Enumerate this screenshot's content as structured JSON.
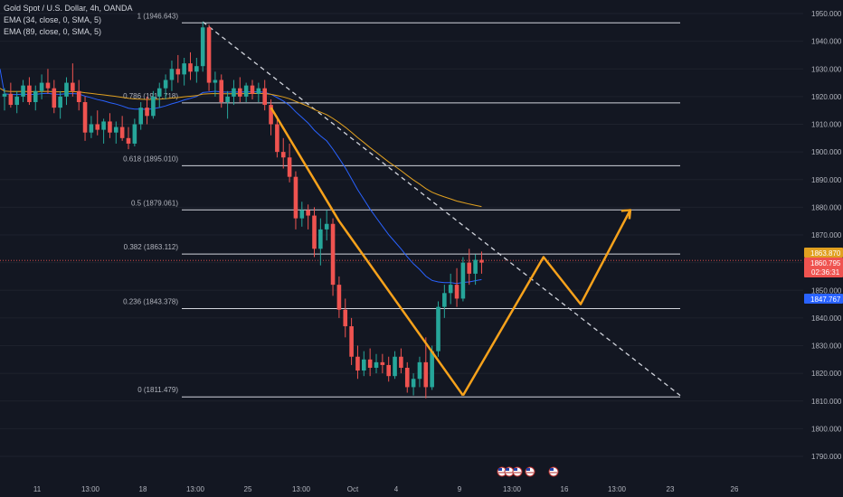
{
  "header": {
    "symbol_line": "Gold Spot / U.S. Dollar, 4h, OANDA",
    "indicators": [
      "EMA (34, close, 0, SMA, 5)",
      "EMA (89, close, 0, SMA, 5)"
    ]
  },
  "colors": {
    "background": "#131722",
    "up": "#26a69a",
    "down": "#ef5350",
    "ema34": "#2962ff",
    "ema89": "#e0a020",
    "drawing": "#f7a21b",
    "fib": "#d1d4dc",
    "trendline": "#d1d4dc",
    "text": "#b2b5be"
  },
  "chart_data": {
    "type": "candlestick",
    "title": "Gold Spot / U.S. Dollar, 4h, OANDA",
    "ylim": [
      1785,
      1955
    ],
    "y_ticks": [
      1790,
      1800,
      1810,
      1820,
      1830,
      1840,
      1850,
      1860,
      1870,
      1880,
      1890,
      1900,
      1910,
      1920,
      1930,
      1940,
      1950
    ],
    "y_tick_labels": [
      "1790.000",
      "1800.000",
      "1810.000",
      "1820.000",
      "1830.000",
      "1840.000",
      "1850.000",
      "1860.000",
      "1870.000",
      "1880.000",
      "1890.000",
      "1900.000",
      "1910.000",
      "1920.000",
      "1930.000",
      "1940.000",
      "1950.000"
    ],
    "x_ticks": [
      "11",
      "13:00",
      "18",
      "13:00",
      "25",
      "13:00",
      "Oct",
      "4",
      "9",
      "13:00",
      "16",
      "13:00",
      "23",
      "26"
    ],
    "fib_levels": [
      {
        "label": "1 (1946.643)",
        "value": 1946.643
      },
      {
        "label": "0.786 (1917.718)",
        "value": 1917.718
      },
      {
        "label": "0.618 (1895.010)",
        "value": 1895.01
      },
      {
        "label": "0.5 (1879.061)",
        "value": 1879.061
      },
      {
        "label": "0.382 (1863.112)",
        "value": 1863.112
      },
      {
        "label": "0.236 (1843.378)",
        "value": 1843.378
      },
      {
        "label": "0 (1811.479)",
        "value": 1811.479
      }
    ],
    "price_tags": [
      {
        "label": "1863.870",
        "value": 1863.87,
        "color": "#e0a020"
      },
      {
        "label": "1860.795",
        "value": 1860.795,
        "color": "#ef5350",
        "sub": "02:36:31"
      },
      {
        "label": "1847.767",
        "value": 1847.767,
        "color": "#2962ff"
      }
    ],
    "candles": [
      {
        "o": 1920,
        "h": 1923,
        "l": 1915,
        "c": 1921
      },
      {
        "o": 1921,
        "h": 1925,
        "l": 1916,
        "c": 1917
      },
      {
        "o": 1917,
        "h": 1922,
        "l": 1914,
        "c": 1920
      },
      {
        "o": 1920,
        "h": 1926,
        "l": 1918,
        "c": 1924
      },
      {
        "o": 1924,
        "h": 1927,
        "l": 1917,
        "c": 1918
      },
      {
        "o": 1918,
        "h": 1924,
        "l": 1915,
        "c": 1922
      },
      {
        "o": 1922,
        "h": 1928,
        "l": 1919,
        "c": 1925
      },
      {
        "o": 1925,
        "h": 1930,
        "l": 1921,
        "c": 1923
      },
      {
        "o": 1923,
        "h": 1926,
        "l": 1914,
        "c": 1916
      },
      {
        "o": 1916,
        "h": 1922,
        "l": 1912,
        "c": 1920
      },
      {
        "o": 1920,
        "h": 1927,
        "l": 1917,
        "c": 1925
      },
      {
        "o": 1925,
        "h": 1932,
        "l": 1920,
        "c": 1922
      },
      {
        "o": 1922,
        "h": 1926,
        "l": 1915,
        "c": 1918
      },
      {
        "o": 1918,
        "h": 1920,
        "l": 1904,
        "c": 1907
      },
      {
        "o": 1907,
        "h": 1913,
        "l": 1905,
        "c": 1910
      },
      {
        "o": 1910,
        "h": 1915,
        "l": 1906,
        "c": 1908
      },
      {
        "o": 1908,
        "h": 1912,
        "l": 1903,
        "c": 1911
      },
      {
        "o": 1911,
        "h": 1914,
        "l": 1905,
        "c": 1907
      },
      {
        "o": 1907,
        "h": 1911,
        "l": 1903,
        "c": 1909
      },
      {
        "o": 1909,
        "h": 1913,
        "l": 1904,
        "c": 1905
      },
      {
        "o": 1905,
        "h": 1909,
        "l": 1901,
        "c": 1903
      },
      {
        "o": 1903,
        "h": 1912,
        "l": 1902,
        "c": 1910
      },
      {
        "o": 1910,
        "h": 1918,
        "l": 1908,
        "c": 1916
      },
      {
        "o": 1916,
        "h": 1920,
        "l": 1910,
        "c": 1913
      },
      {
        "o": 1913,
        "h": 1922,
        "l": 1912,
        "c": 1920
      },
      {
        "o": 1920,
        "h": 1925,
        "l": 1916,
        "c": 1923
      },
      {
        "o": 1923,
        "h": 1928,
        "l": 1919,
        "c": 1926
      },
      {
        "o": 1926,
        "h": 1933,
        "l": 1922,
        "c": 1930
      },
      {
        "o": 1930,
        "h": 1935,
        "l": 1925,
        "c": 1928
      },
      {
        "o": 1928,
        "h": 1934,
        "l": 1924,
        "c": 1932
      },
      {
        "o": 1932,
        "h": 1936,
        "l": 1926,
        "c": 1929
      },
      {
        "o": 1929,
        "h": 1934,
        "l": 1925,
        "c": 1931
      },
      {
        "o": 1931,
        "h": 1947,
        "l": 1929,
        "c": 1945
      },
      {
        "o": 1945,
        "h": 1946,
        "l": 1922,
        "c": 1925
      },
      {
        "o": 1925,
        "h": 1929,
        "l": 1920,
        "c": 1926
      },
      {
        "o": 1926,
        "h": 1928,
        "l": 1916,
        "c": 1918
      },
      {
        "o": 1918,
        "h": 1922,
        "l": 1912,
        "c": 1920
      },
      {
        "o": 1920,
        "h": 1926,
        "l": 1917,
        "c": 1923
      },
      {
        "o": 1923,
        "h": 1927,
        "l": 1918,
        "c": 1920
      },
      {
        "o": 1920,
        "h": 1925,
        "l": 1918,
        "c": 1924
      },
      {
        "o": 1924,
        "h": 1926,
        "l": 1919,
        "c": 1921
      },
      {
        "o": 1921,
        "h": 1925,
        "l": 1918,
        "c": 1923
      },
      {
        "o": 1923,
        "h": 1926,
        "l": 1915,
        "c": 1917
      },
      {
        "o": 1917,
        "h": 1919,
        "l": 1906,
        "c": 1910
      },
      {
        "o": 1910,
        "h": 1913,
        "l": 1898,
        "c": 1900
      },
      {
        "o": 1900,
        "h": 1905,
        "l": 1894,
        "c": 1898
      },
      {
        "o": 1898,
        "h": 1903,
        "l": 1889,
        "c": 1891
      },
      {
        "o": 1891,
        "h": 1893,
        "l": 1872,
        "c": 1876
      },
      {
        "o": 1876,
        "h": 1882,
        "l": 1873,
        "c": 1879
      },
      {
        "o": 1879,
        "h": 1881,
        "l": 1872,
        "c": 1877
      },
      {
        "o": 1877,
        "h": 1880,
        "l": 1862,
        "c": 1865
      },
      {
        "o": 1865,
        "h": 1876,
        "l": 1859,
        "c": 1872
      },
      {
        "o": 1872,
        "h": 1879,
        "l": 1868,
        "c": 1874
      },
      {
        "o": 1874,
        "h": 1876,
        "l": 1848,
        "c": 1852
      },
      {
        "o": 1852,
        "h": 1855,
        "l": 1840,
        "c": 1843
      },
      {
        "o": 1843,
        "h": 1847,
        "l": 1833,
        "c": 1837
      },
      {
        "o": 1837,
        "h": 1840,
        "l": 1823,
        "c": 1826
      },
      {
        "o": 1826,
        "h": 1830,
        "l": 1818,
        "c": 1821
      },
      {
        "o": 1821,
        "h": 1828,
        "l": 1819,
        "c": 1825
      },
      {
        "o": 1825,
        "h": 1829,
        "l": 1819,
        "c": 1822
      },
      {
        "o": 1822,
        "h": 1827,
        "l": 1820,
        "c": 1824
      },
      {
        "o": 1824,
        "h": 1827,
        "l": 1820,
        "c": 1823
      },
      {
        "o": 1823,
        "h": 1826,
        "l": 1817,
        "c": 1819
      },
      {
        "o": 1819,
        "h": 1828,
        "l": 1818,
        "c": 1826
      },
      {
        "o": 1826,
        "h": 1829,
        "l": 1820,
        "c": 1822
      },
      {
        "o": 1822,
        "h": 1824,
        "l": 1813,
        "c": 1815
      },
      {
        "o": 1815,
        "h": 1820,
        "l": 1812,
        "c": 1818
      },
      {
        "o": 1818,
        "h": 1826,
        "l": 1815,
        "c": 1824
      },
      {
        "o": 1824,
        "h": 1833,
        "l": 1811,
        "c": 1815
      },
      {
        "o": 1815,
        "h": 1830,
        "l": 1814,
        "c": 1828
      },
      {
        "o": 1828,
        "h": 1846,
        "l": 1826,
        "c": 1844
      },
      {
        "o": 1844,
        "h": 1852,
        "l": 1840,
        "c": 1849
      },
      {
        "o": 1849,
        "h": 1856,
        "l": 1845,
        "c": 1852
      },
      {
        "o": 1852,
        "h": 1858,
        "l": 1844,
        "c": 1847
      },
      {
        "o": 1847,
        "h": 1862,
        "l": 1846,
        "c": 1860
      },
      {
        "o": 1860,
        "h": 1865,
        "l": 1852,
        "c": 1856
      },
      {
        "o": 1856,
        "h": 1863,
        "l": 1852,
        "c": 1861
      },
      {
        "o": 1861,
        "h": 1864,
        "l": 1856,
        "c": 1860
      }
    ],
    "annotations": {
      "trendline": [
        {
          "i": 32,
          "v": 1947
        },
        {
          "i": 108,
          "v": 1812
        }
      ],
      "path_down": [
        {
          "i": 43,
          "v": 1916
        },
        {
          "i": 54,
          "v": 1875
        },
        {
          "i": 74,
          "v": 1812
        }
      ],
      "path_up": [
        {
          "i": 74,
          "v": 1812
        },
        {
          "i": 87,
          "v": 1862
        },
        {
          "i": 93,
          "v": 1845
        },
        {
          "i": 101,
          "v": 1879
        }
      ]
    }
  }
}
